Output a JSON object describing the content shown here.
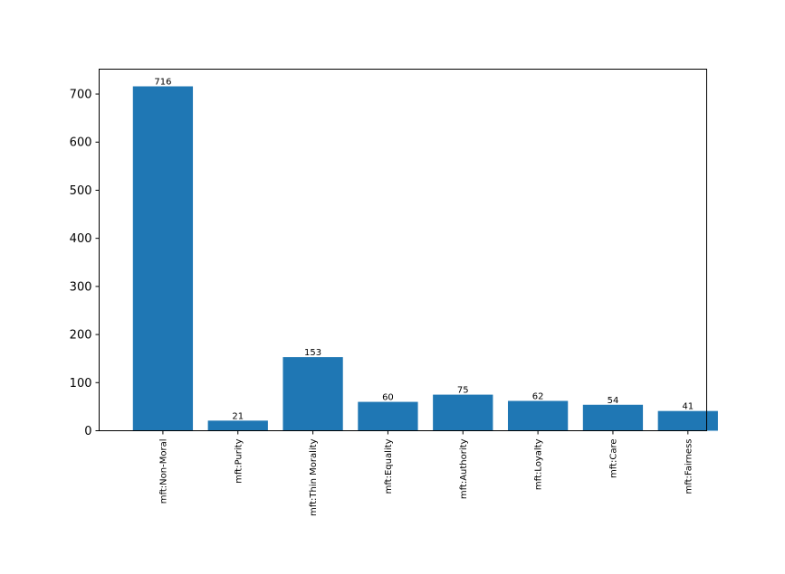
{
  "chart_data": {
    "type": "bar",
    "categories": [
      "mft:Non-Moral",
      "mft:Purity",
      "mft:Thin Morality",
      "mft:Equality",
      "mft:Authority",
      "mft:Loyalty",
      "mft:Care",
      "mft:Fairness"
    ],
    "values": [
      716,
      21,
      153,
      60,
      75,
      62,
      54,
      41
    ],
    "data_labels": [
      "716",
      "21",
      "153",
      "60",
      "75",
      "62",
      "54",
      "41"
    ],
    "title": "",
    "xlabel": "",
    "ylabel": "",
    "ylim": [
      0,
      751.75
    ],
    "yticks": [
      0,
      100,
      200,
      300,
      400,
      500,
      600,
      700
    ],
    "ytick_labels": [
      "0",
      "100",
      "200",
      "300",
      "400",
      "500",
      "600",
      "700"
    ],
    "grid": false,
    "bar_color": "#1f77b4",
    "category_label_rotation": "vertical"
  }
}
